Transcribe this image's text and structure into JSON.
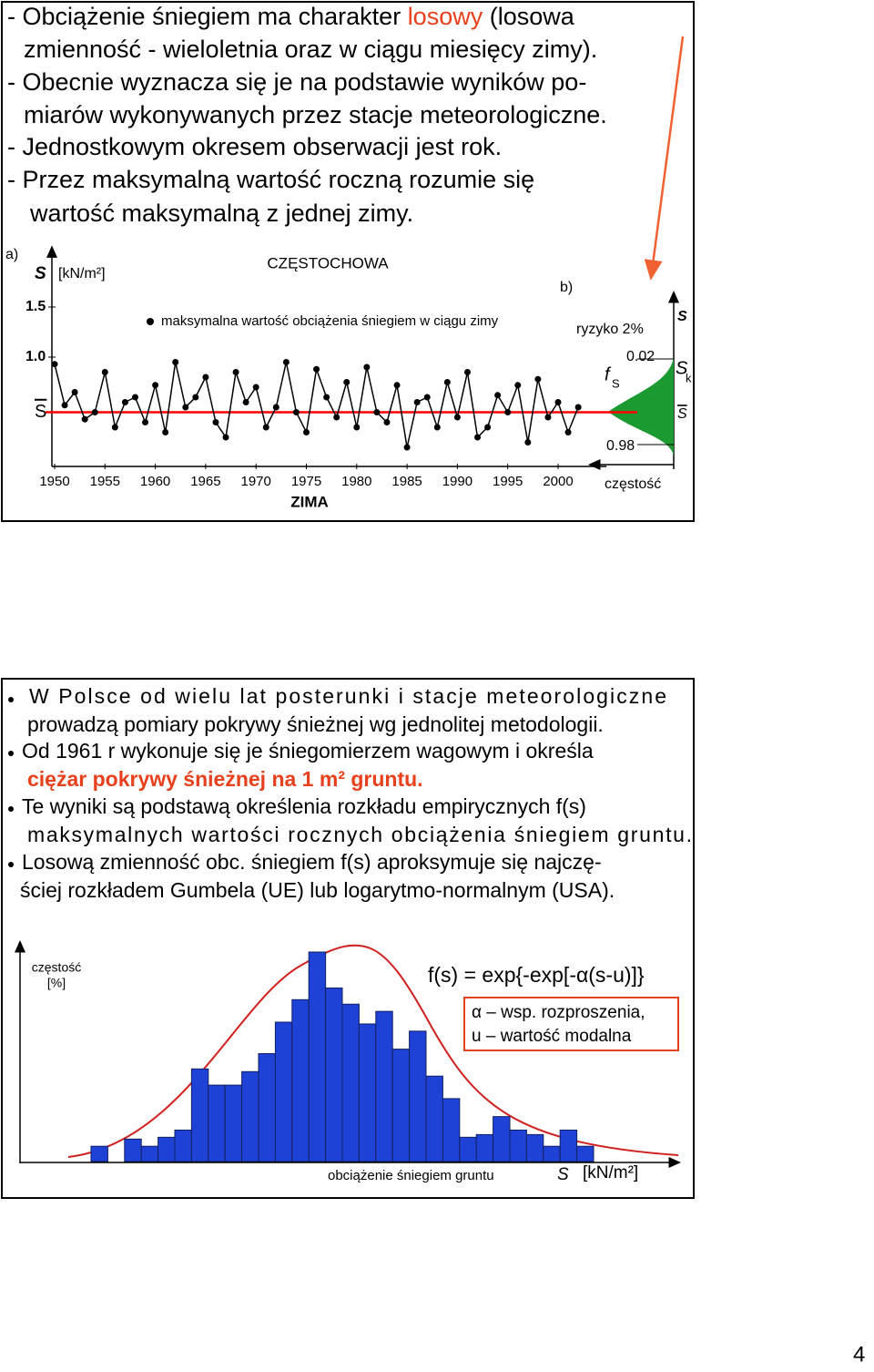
{
  "slide1": {
    "lines": [
      [
        "- Obciążenie  śniegiem  ma  charakter  ",
        "losowy",
        " (losowa"
      ],
      "zmienność - wieloletnia oraz w ciągu miesięcy zimy).",
      "- Obecnie wyznacza się je na podstawie wyników po-",
      "miarów wykonywanych przez stacje meteorologiczne.",
      "-  Jednostkowym okresem obserwacji jest rok.",
      "-  Przez maksymalną wartość roczną rozumie się",
      "wartość maksymalną z jednej zimy."
    ],
    "panel_a": "a)",
    "panel_b": "b)",
    "b_labels": {
      "risk": "ryzyko 2%",
      "s_top": "S",
      "p_top": "0.02",
      "f": "f",
      "f_sub": "S",
      "sk": "S",
      "sk_sub": "k",
      "s_mean": "S",
      "p_bottom": "0.98",
      "freq": "częstość"
    }
  },
  "slide2": {
    "bullets": [
      [
        "W  Polsce  od  wielu  lat  posterunki  i  stacje  meteorologiczne",
        "prowadzą pomiary pokrywy śnieżnej wg jednolitej metodologii."
      ],
      [
        "Od 1961 r wykonuje się je śniegomierzem wagowym i określa",
        "ciężar  pokrywy  śnieżnej  na  1 m² gruntu."
      ],
      [
        "Te wyniki są podstawą określenia rozkładu empirycznych f(s)",
        "maksymalnych  wartości  rocznych  obciążenia  śniegiem  gruntu."
      ],
      [
        "Losową zmienność obc. śniegiem f(s) aproksymuje się najczę-",
        "ściej rozkładem Gumbela (UE) lub logarytmo-normalnym (USA)."
      ]
    ],
    "formula": "f(s) = exp{-exp[-α(s-u)]}",
    "legend_lines": [
      "α – wsp. rozproszenia,",
      "u – wartość modalna"
    ]
  },
  "page_number": "4",
  "chart_data": [
    {
      "type": "line",
      "title": "CZĘSTOCHOWA",
      "y_symbol": "S",
      "y_unit": "[kN/m²]",
      "x_label": "ZIMA",
      "x": [
        1950,
        1951,
        1952,
        1953,
        1954,
        1955,
        1956,
        1957,
        1958,
        1959,
        1960,
        1961,
        1962,
        1963,
        1964,
        1965,
        1966,
        1967,
        1968,
        1969,
        1970,
        1971,
        1972,
        1973,
        1974,
        1975,
        1976,
        1977,
        1978,
        1979,
        1980,
        1981,
        1982,
        1983,
        1984,
        1985,
        1986,
        1987,
        1988,
        1989,
        1990,
        1991,
        1992,
        1993,
        1994,
        1995,
        1996,
        1997,
        1998,
        1999,
        2000,
        2001,
        2002
      ],
      "series": [
        {
          "name": "maksymalna wartość obciążenia śniegiem w ciągu zimy",
          "color": "#000000",
          "values": [
            0.93,
            0.52,
            0.65,
            0.38,
            0.45,
            0.85,
            0.3,
            0.55,
            0.6,
            0.35,
            0.72,
            0.25,
            0.95,
            0.5,
            0.6,
            0.8,
            0.35,
            0.2,
            0.85,
            0.55,
            0.7,
            0.3,
            0.5,
            0.95,
            0.45,
            0.25,
            0.88,
            0.6,
            0.4,
            0.75,
            0.3,
            0.9,
            0.45,
            0.35,
            0.72,
            0.1,
            0.55,
            0.6,
            0.3,
            0.75,
            0.4,
            0.85,
            0.2,
            0.3,
            0.62,
            0.45,
            0.72,
            0.15,
            0.78,
            0.4,
            0.55,
            0.25,
            0.5
          ]
        }
      ],
      "mean": {
        "value": 0.45,
        "label": "S",
        "color": "#ff0000"
      },
      "xlim": [
        1948,
        2003
      ],
      "ylim": [
        0,
        2.06
      ],
      "xticks": [
        1950,
        1955,
        1960,
        1965,
        1970,
        1975,
        1980,
        1985,
        1990,
        1995,
        2000
      ],
      "yticks": [
        {
          "value": 1,
          "label": "1.0"
        },
        1.5
      ]
    },
    {
      "type": "bar",
      "y_label": [
        "częstość",
        "[%]"
      ],
      "x_label": "obciążenie śniegiem gruntu",
      "x_symbol": "S",
      "x_unit": "[kN/m²]",
      "color": "#1e42d6",
      "categories": [
        null,
        null,
        null,
        null,
        null,
        null,
        null,
        null,
        null,
        null,
        null,
        null,
        null,
        null,
        null,
        null,
        null,
        null,
        null,
        null,
        null,
        null,
        null,
        null,
        null,
        null,
        null,
        null,
        null,
        null
      ],
      "values": [
        1.7,
        0,
        2.5,
        1.7,
        2.7,
        3.5,
        10.3,
        8.5,
        8.5,
        10,
        12,
        15.5,
        18,
        23.3,
        19.3,
        17.5,
        15.3,
        16.7,
        12.5,
        14.5,
        9.5,
        7,
        2.7,
        3,
        5,
        3.5,
        3,
        1.7,
        3.5,
        1.7
      ]
    }
  ]
}
